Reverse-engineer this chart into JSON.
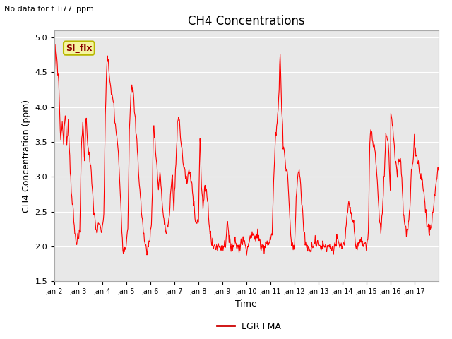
{
  "title": "CH4 Concentrations",
  "top_left_text": "No data for f_li77_ppm",
  "ylabel": "CH4 Concentration (ppm)",
  "xlabel": "Time",
  "ylim": [
    1.5,
    5.1
  ],
  "yticks": [
    1.5,
    2.0,
    2.5,
    3.0,
    3.5,
    4.0,
    4.5,
    5.0
  ],
  "xtick_labels": [
    "Jan 2",
    "Jan 3",
    "Jan 4",
    "Jan 5",
    "Jan 6",
    "Jan 7",
    "Jan 8",
    "Jan 9",
    "Jan 10",
    "Jan 11",
    "Jan 12",
    "Jan 13",
    "Jan 14",
    "Jan 15",
    "Jan 16",
    "Jan 17"
  ],
  "line_color": "#ff0000",
  "background_color": "#e8e8e8",
  "legend_label": "LGR FMA",
  "legend_line_color": "#cc0000",
  "box_label": "SI_flx",
  "box_facecolor": "#f5f5a0",
  "box_edgecolor": "#b8b800",
  "title_fontsize": 12,
  "label_fontsize": 9,
  "tick_fontsize": 8
}
